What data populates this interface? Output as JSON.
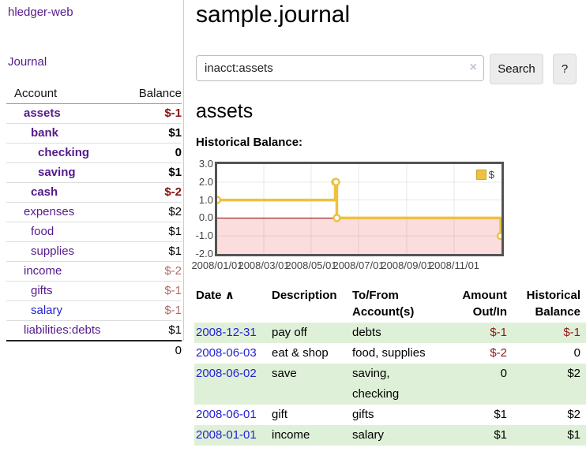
{
  "app": {
    "title": "hledger-web"
  },
  "colors": {
    "link_purple": "#551a8b",
    "link_blue": "#2323d3",
    "negative_strong": "#8b0f0f",
    "negative_muted": "#b26a6a",
    "table_negative": "#8b1a1a",
    "stripe": "#dff0d8",
    "chart_line_gold": "#edc240",
    "chart_negative_fill": "#fbdddd",
    "zero_line_red": "#8b0000",
    "chart_border": "#545454"
  },
  "sidebar": {
    "journal_label": "Journal",
    "accounts_table": {
      "headers": [
        "Account",
        "Balance"
      ],
      "rows": [
        {
          "account": "assets",
          "indent": 1,
          "bold": true,
          "balance": "$-1",
          "balance_tone": "negative-strong"
        },
        {
          "account": "bank",
          "indent": 2,
          "bold": true,
          "balance": "$1",
          "balance_tone": "normal"
        },
        {
          "account": "checking",
          "indent": 3,
          "bold": true,
          "balance": "0",
          "balance_tone": "normal"
        },
        {
          "account": "saving",
          "indent": 3,
          "bold": true,
          "balance": "$1",
          "balance_tone": "normal"
        },
        {
          "account": "cash",
          "indent": 2,
          "bold": true,
          "balance": "$-2",
          "balance_tone": "negative-strong"
        },
        {
          "account": "expenses",
          "indent": 1,
          "bold": false,
          "balance": "$2",
          "balance_tone": "normal"
        },
        {
          "account": "food",
          "indent": 2,
          "bold": false,
          "balance": "$1",
          "balance_tone": "normal"
        },
        {
          "account": "supplies",
          "indent": 2,
          "bold": false,
          "balance": "$1",
          "balance_tone": "normal"
        },
        {
          "account": "income",
          "indent": 1,
          "bold": false,
          "balance": "$-2",
          "balance_tone": "negative-muted"
        },
        {
          "account": "gifts",
          "indent": 2,
          "bold": false,
          "balance": "$-1",
          "balance_tone": "negative-muted"
        },
        {
          "account": "salary",
          "indent": 2,
          "bold": false,
          "balance": "$-1",
          "balance_tone": "negative-muted",
          "link_tone": "blue"
        },
        {
          "account": "liabilities:debts",
          "indent": 1,
          "bold": false,
          "balance": "$1",
          "balance_tone": "normal"
        }
      ],
      "total": "0"
    }
  },
  "main": {
    "title": "sample.journal",
    "search": {
      "value": "inacct:assets",
      "clear_icon": "×",
      "button_label": "Search",
      "help_label": "?"
    },
    "account_heading": "assets"
  },
  "chart_data": {
    "type": "line",
    "title": "Historical Balance:",
    "step": true,
    "x_range": [
      "2008-01-01",
      "2009-01-01"
    ],
    "x_ticks": [
      "2008/01/01",
      "2008/03/01",
      "2008/05/01",
      "2008/07/01",
      "2008/09/01",
      "2008/11/01"
    ],
    "y_ticks": [
      3.0,
      2.0,
      1.0,
      0.0,
      -1.0,
      -2.0
    ],
    "ylim": [
      -2,
      3
    ],
    "grid": true,
    "legend": {
      "label": "$",
      "position": "top-right"
    },
    "series": [
      {
        "name": "$",
        "color": "#edc240",
        "points": [
          [
            "2008-01-01",
            1
          ],
          [
            "2008-06-01",
            2
          ],
          [
            "2008-06-02",
            2
          ],
          [
            "2008-06-03",
            0
          ],
          [
            "2008-12-31",
            -1
          ]
        ]
      }
    ]
  },
  "register_table": {
    "sort_icon": "∧",
    "headers": [
      {
        "label": "Date",
        "align": "left",
        "sortable": true
      },
      {
        "label": "Description",
        "align": "left"
      },
      {
        "label": "To/From\nAccount(s)",
        "align": "left"
      },
      {
        "label": "Amount\nOut/In",
        "align": "right"
      },
      {
        "label": "Historical\nBalance",
        "align": "right"
      }
    ],
    "rows": [
      {
        "date": "2008-12-31",
        "description": "pay off",
        "accounts": "debts",
        "amount": "$-1",
        "amount_negative": true,
        "balance": "$-1",
        "balance_negative": true
      },
      {
        "date": "2008-06-03",
        "description": "eat & shop",
        "accounts": "food, supplies",
        "amount": "$-2",
        "amount_negative": true,
        "balance": "0",
        "balance_negative": false
      },
      {
        "date": "2008-06-02",
        "description": "save",
        "accounts": "saving, checking",
        "amount": "0",
        "amount_negative": false,
        "balance": "$2",
        "balance_negative": false
      },
      {
        "date": "2008-06-01",
        "description": "gift",
        "accounts": "gifts",
        "amount": "$1",
        "amount_negative": false,
        "balance": "$2",
        "balance_negative": false
      },
      {
        "date": "2008-01-01",
        "description": "income",
        "accounts": "salary",
        "amount": "$1",
        "amount_negative": false,
        "balance": "$1",
        "balance_negative": false
      }
    ]
  }
}
